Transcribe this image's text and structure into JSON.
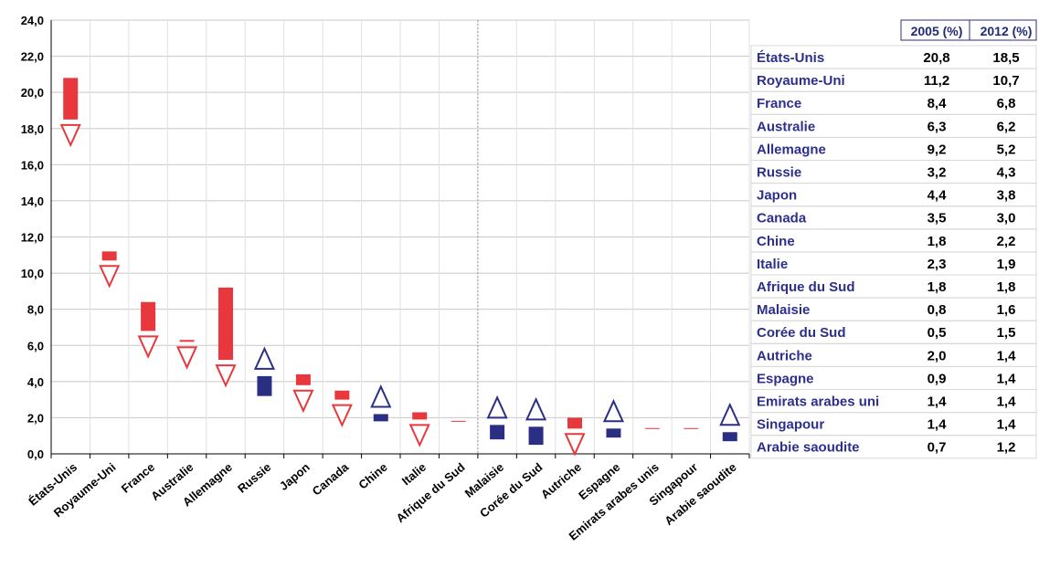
{
  "chart_data": {
    "type": "range-bar",
    "ylim": [
      0,
      24
    ],
    "yticks": [
      "0,0",
      "2,0",
      "4,0",
      "6,0",
      "8,0",
      "10,0",
      "12,0",
      "14,0",
      "16,0",
      "18,0",
      "20,0",
      "22,0",
      "24,0"
    ],
    "table_headers": [
      "2005 (%)",
      "2012 (%)"
    ],
    "colors": {
      "decrease": "#e8383d",
      "increase": "#2b2f84",
      "grid": "#c8c8c8",
      "header_border": "#2b2f84"
    },
    "countries": [
      {
        "name": "États-Unis",
        "v2005": 20.8,
        "v2012": 18.5,
        "label2005": "20,8",
        "label2012": "18,5"
      },
      {
        "name": "Royaume-Uni",
        "v2005": 11.2,
        "v2012": 10.7,
        "label2005": "11,2",
        "label2012": "10,7"
      },
      {
        "name": "France",
        "v2005": 8.4,
        "v2012": 6.8,
        "label2005": "8,4",
        "label2012": "6,8"
      },
      {
        "name": "Australie",
        "v2005": 6.3,
        "v2012": 6.2,
        "label2005": "6,3",
        "label2012": "6,2"
      },
      {
        "name": "Allemagne",
        "v2005": 9.2,
        "v2012": 5.2,
        "label2005": "9,2",
        "label2012": "5,2"
      },
      {
        "name": "Russie",
        "v2005": 3.2,
        "v2012": 4.3,
        "label2005": "3,2",
        "label2012": "4,3"
      },
      {
        "name": "Japon",
        "v2005": 4.4,
        "v2012": 3.8,
        "label2005": "4,4",
        "label2012": "3,8"
      },
      {
        "name": "Canada",
        "v2005": 3.5,
        "v2012": 3.0,
        "label2005": "3,5",
        "label2012": "3,0"
      },
      {
        "name": "Chine",
        "v2005": 1.8,
        "v2012": 2.2,
        "label2005": "1,8",
        "label2012": "2,2"
      },
      {
        "name": "Italie",
        "v2005": 2.3,
        "v2012": 1.9,
        "label2005": "2,3",
        "label2012": "1,9"
      },
      {
        "name": "Afrique du Sud",
        "v2005": 1.8,
        "v2012": 1.8,
        "label2005": "1,8",
        "label2012": "1,8"
      },
      {
        "name": "Malaisie",
        "v2005": 0.8,
        "v2012": 1.6,
        "label2005": "0,8",
        "label2012": "1,6"
      },
      {
        "name": "Corée du Sud",
        "v2005": 0.5,
        "v2012": 1.5,
        "label2005": "0,5",
        "label2012": "1,5"
      },
      {
        "name": "Autriche",
        "v2005": 2.0,
        "v2012": 1.4,
        "label2005": "2,0",
        "label2012": "1,4"
      },
      {
        "name": "Espagne",
        "v2005": 0.9,
        "v2012": 1.4,
        "label2005": "0,9",
        "label2012": "1,4"
      },
      {
        "name": "Emirats arabes unis",
        "table_name": "Emirats arabes uni",
        "v2005": 1.4,
        "v2012": 1.4,
        "label2005": "1,4",
        "label2012": "1,4"
      },
      {
        "name": "Singapour",
        "v2005": 1.4,
        "v2012": 1.4,
        "label2005": "1,4",
        "label2012": "1,4"
      },
      {
        "name": "Arabie saoudite",
        "v2005": 0.7,
        "v2012": 1.2,
        "label2005": "0,7",
        "label2012": "1,2"
      }
    ]
  }
}
